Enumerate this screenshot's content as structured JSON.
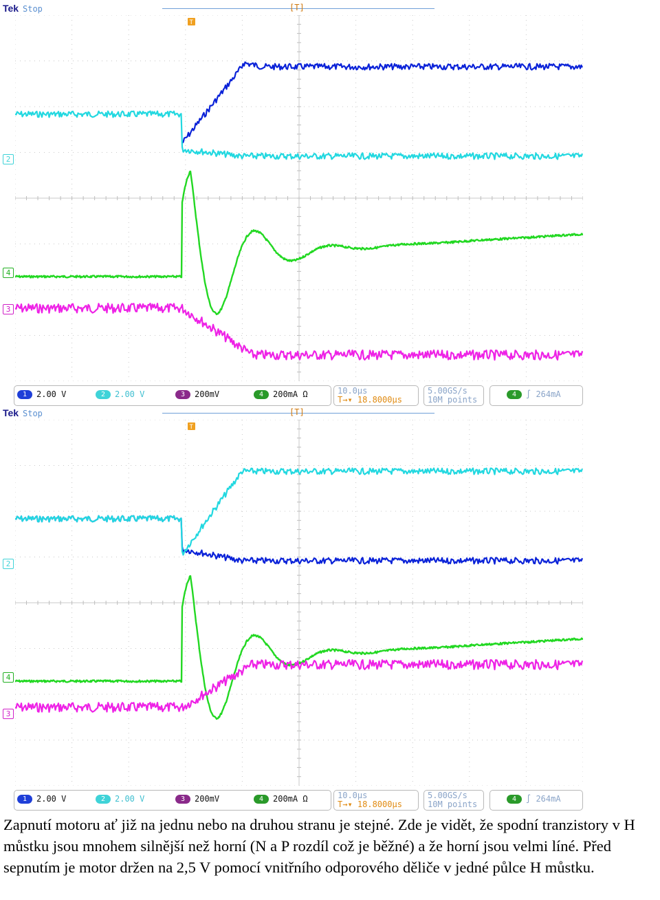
{
  "scopes": [
    {
      "header": {
        "brand": "Tek",
        "state": "Stop",
        "trigger_pos_marker": "[T]",
        "trigger_marker": "T"
      },
      "channel_markers": [
        {
          "id": "2",
          "color": "#3fd3d8",
          "level": 0.5
        },
        {
          "id": "4",
          "color": "#22d022",
          "level": 0.81
        },
        {
          "id": "3",
          "color": "#ff22ee",
          "level": 0.9
        }
      ],
      "traces_description_colors": {
        "ch1": "#0a22d8",
        "ch2": "#22d8e0",
        "ch3": "#ee22e6",
        "ch4": "#22d822"
      },
      "status": {
        "ch1": {
          "num": "1",
          "value": "2.00 V",
          "color": "#1f3fd8"
        },
        "ch2": {
          "num": "2",
          "value": "2.00 V",
          "color": "#3fd3d8"
        },
        "ch3": {
          "num": "3",
          "value": "200mV",
          "color": "#8a2a8a"
        },
        "ch4": {
          "num": "4",
          "value": "200mA Ω",
          "color": "#2a9a2a"
        },
        "timebase": "10.0µs",
        "trigger_time": "18.8000µs",
        "sample_rate": "5.00GS/s",
        "record_length": "10M points",
        "trigger_source": "4",
        "trigger_level": "264mA"
      }
    },
    {
      "header": {
        "brand": "Tek",
        "state": "Stop",
        "trigger_pos_marker": "[T]",
        "trigger_marker": "T"
      },
      "channel_markers": [
        {
          "id": "2",
          "color": "#3fd3d8",
          "level": 0.5
        },
        {
          "id": "4",
          "color": "#22d022",
          "level": 0.81
        },
        {
          "id": "3",
          "color": "#ff22ee",
          "level": 0.9
        }
      ],
      "traces_description_colors": {
        "ch1": "#0a22d8",
        "ch2": "#22d8e0",
        "ch3": "#ee22e6",
        "ch4": "#22d822"
      },
      "status": {
        "ch1": {
          "num": "1",
          "value": "2.00 V",
          "color": "#1f3fd8"
        },
        "ch2": {
          "num": "2",
          "value": "2.00 V",
          "color": "#3fd3d8"
        },
        "ch3": {
          "num": "3",
          "value": "200mV",
          "color": "#8a2a8a"
        },
        "ch4": {
          "num": "4",
          "value": "200mA Ω",
          "color": "#2a9a2a"
        },
        "timebase": "10.0µs",
        "trigger_time": "18.8000µs",
        "sample_rate": "5.00GS/s",
        "record_length": "10M points",
        "trigger_source": "4",
        "trigger_level": "264mA"
      }
    }
  ],
  "caption": "Zapnutí motoru ať již na jednu nebo na druhou stranu je stejné. Zde je vidět, že spodní tranzistory v H můstku jsou mnohem silnější než horní (N a P rozdíl což je běžné) a že horní jsou velmi líné. Před sepnutím je motor držen na 2,5 V pomocí vnitřního odporového děliče v jedné půlce H můstku."
}
